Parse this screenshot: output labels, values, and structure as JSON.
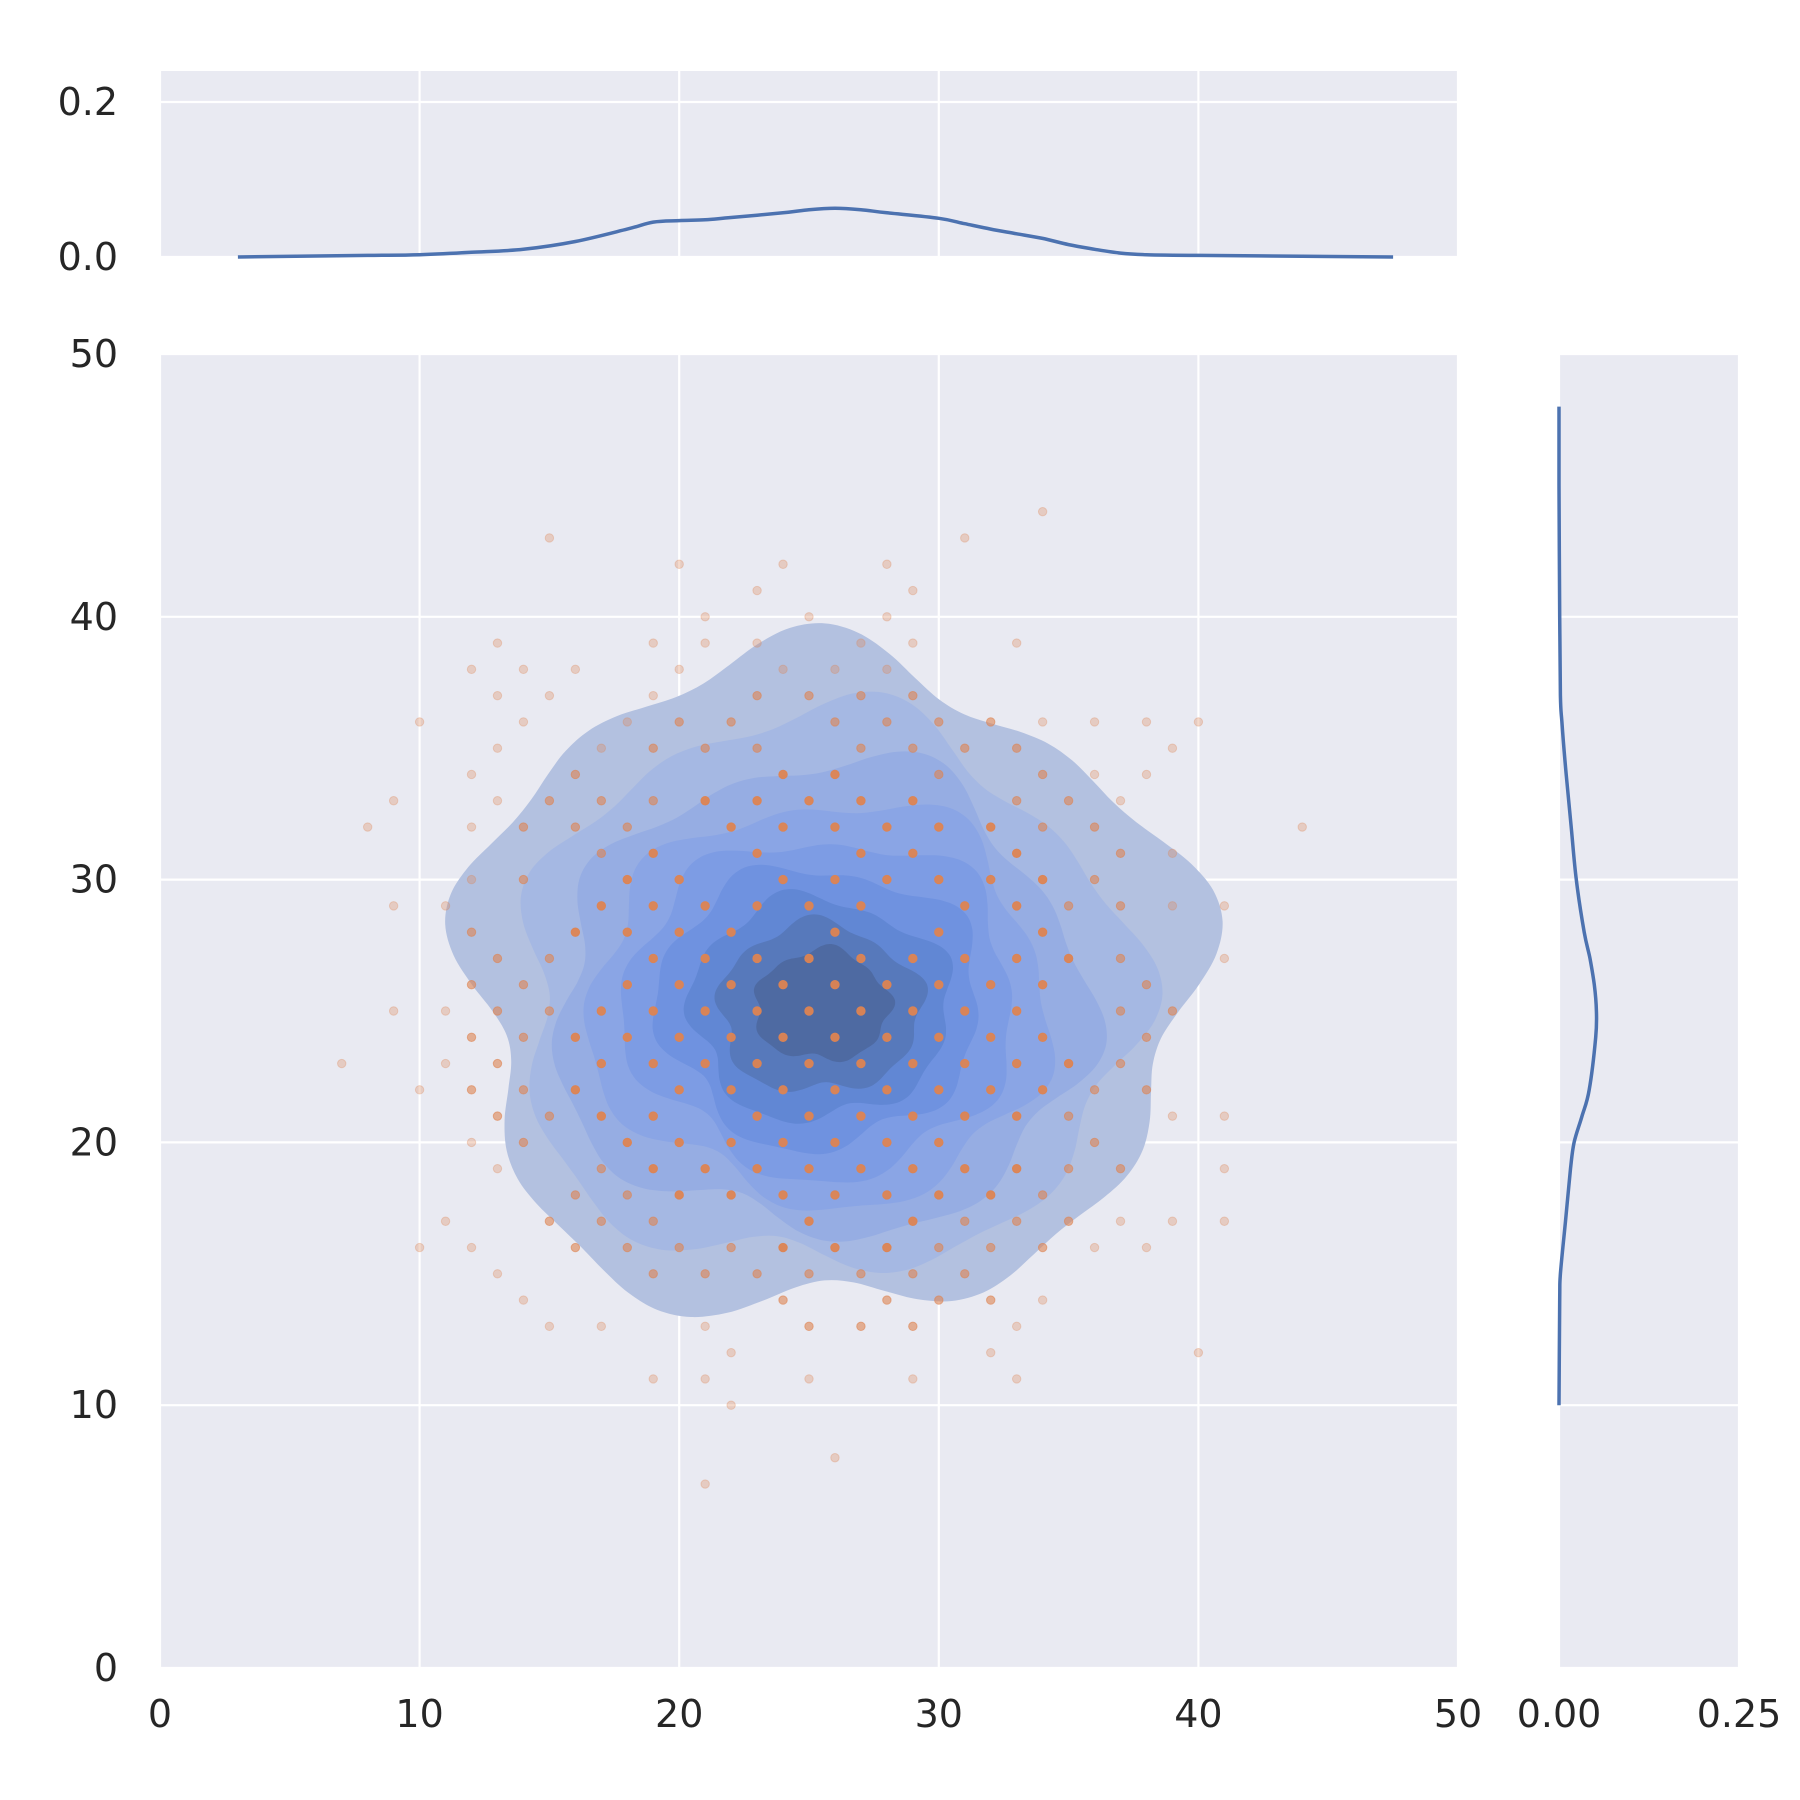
{
  "chart_data": {
    "type": "scatter",
    "style": "seaborn jointplot: bivariate KDE (filled contours) with scatter overlay and marginal KDE curves",
    "colors": {
      "panel_background": "#e9eaf2",
      "grid": "#ffffff",
      "kde_line": "#4c72b0",
      "scatter": "#dd8452",
      "contour_levels": [
        "#b3c1e0",
        "#a5b8e3",
        "#96ade3",
        "#8aa5e5",
        "#7d9ce4",
        "#6f92e0",
        "#6187d4",
        "#5779bb",
        "#4e6aa2",
        "#465a86"
      ]
    },
    "axes": {
      "joint": {
        "xlim": [
          0,
          50
        ],
        "ylim": [
          0,
          50
        ],
        "xticks": [
          0,
          10,
          20,
          30,
          40,
          50
        ],
        "yticks": [
          0,
          10,
          20,
          30,
          40,
          50
        ],
        "xtick_labels": [
          "0",
          "10",
          "20",
          "30",
          "40",
          "50"
        ],
        "ytick_labels": [
          "0",
          "10",
          "20",
          "30",
          "40",
          "50"
        ],
        "grid": true
      },
      "marginal_x": {
        "ylim": [
          0,
          0.24
        ],
        "yticks": [
          0.0,
          0.2
        ],
        "ytick_labels": [
          "0.0",
          "0.2"
        ],
        "grid": true
      },
      "marginal_y": {
        "xlim": [
          0,
          0.25
        ],
        "xticks": [
          0.0,
          0.25
        ],
        "xtick_labels": [
          "0.00",
          "0.25"
        ],
        "grid": true
      }
    },
    "marginal_x_kde": {
      "x": [
        3,
        8,
        10,
        12,
        14,
        16,
        18,
        19,
        20,
        21,
        22,
        24,
        25,
        26,
        27,
        28,
        30,
        31,
        32,
        33,
        34,
        35,
        36,
        37,
        38,
        40,
        44,
        47.5
      ],
      "density": [
        0,
        0.002,
        0.003,
        0.006,
        0.01,
        0.02,
        0.036,
        0.045,
        0.047,
        0.048,
        0.051,
        0.057,
        0.061,
        0.063,
        0.061,
        0.057,
        0.05,
        0.043,
        0.036,
        0.03,
        0.024,
        0.016,
        0.01,
        0.005,
        0.003,
        0.002,
        0.001,
        0
      ]
    },
    "marginal_y_kde": {
      "y": [
        0,
        10,
        14,
        15,
        17,
        19,
        20,
        21,
        22,
        24,
        25,
        26,
        27,
        28,
        30,
        32,
        34,
        36,
        37,
        40,
        45,
        48
      ],
      "density": [
        0,
        0.0,
        0.001,
        0.002,
        0.009,
        0.016,
        0.021,
        0.032,
        0.042,
        0.051,
        0.052,
        0.049,
        0.043,
        0.035,
        0.024,
        0.017,
        0.01,
        0.004,
        0.002,
        0.001,
        0,
        0
      ],
      "ylim": [
        5,
        48
      ]
    },
    "kde_contours": {
      "center": [
        25.5,
        25
      ],
      "levels": [
        {
          "radius_x": 14,
          "radius_y": 12.5,
          "center_x": 25.6,
          "center_y": 26.0
        },
        {
          "radius_x": 11.8,
          "radius_y": 10.5,
          "center_x": 25.6,
          "center_y": 25.6
        },
        {
          "radius_x": 10.2,
          "radius_y": 8.9,
          "center_x": 25.5,
          "center_y": 25.4
        },
        {
          "radius_x": 8.8,
          "radius_y": 7.6,
          "center_x": 25.5,
          "center_y": 25.3
        },
        {
          "radius_x": 7.5,
          "radius_y": 6.4,
          "center_x": 25.5,
          "center_y": 25.2
        },
        {
          "radius_x": 6.2,
          "radius_y": 5.3,
          "center_x": 25.4,
          "center_y": 25.2
        },
        {
          "radius_x": 5.0,
          "radius_y": 4.2,
          "center_x": 25.4,
          "center_y": 25.1
        },
        {
          "radius_x": 3.9,
          "radius_y": 3.2,
          "center_x": 25.4,
          "center_y": 25.1
        },
        {
          "radius_x": 2.6,
          "radius_y": 2.1,
          "center_x": 25.5,
          "center_y": 25.2
        }
      ]
    },
    "scatter_points": [
      [
        34,
        44
      ],
      [
        15,
        43
      ],
      [
        31,
        43
      ],
      [
        20,
        42
      ],
      [
        24,
        42
      ],
      [
        28,
        42
      ],
      [
        23,
        41
      ],
      [
        29,
        41
      ],
      [
        21,
        40
      ],
      [
        25,
        40
      ],
      [
        28,
        40
      ],
      [
        13,
        39
      ],
      [
        19,
        39
      ],
      [
        21,
        39
      ],
      [
        23,
        39
      ],
      [
        27,
        39
      ],
      [
        29,
        39
      ],
      [
        33,
        39
      ],
      [
        12,
        38
      ],
      [
        14,
        38
      ],
      [
        16,
        38
      ],
      [
        20,
        38
      ],
      [
        24,
        38
      ],
      [
        26,
        38
      ],
      [
        28,
        38
      ],
      [
        13,
        37
      ],
      [
        15,
        37
      ],
      [
        19,
        37
      ],
      [
        23,
        37
      ],
      [
        25,
        37
      ],
      [
        27,
        37
      ],
      [
        29,
        37
      ],
      [
        10,
        36
      ],
      [
        14,
        36
      ],
      [
        18,
        36
      ],
      [
        20,
        36
      ],
      [
        22,
        36
      ],
      [
        26,
        36
      ],
      [
        28,
        36
      ],
      [
        30,
        36
      ],
      [
        32,
        36
      ],
      [
        34,
        36
      ],
      [
        36,
        36
      ],
      [
        38,
        36
      ],
      [
        40,
        36
      ],
      [
        13,
        35
      ],
      [
        17,
        35
      ],
      [
        19,
        35
      ],
      [
        21,
        35
      ],
      [
        23,
        35
      ],
      [
        27,
        35
      ],
      [
        29,
        35
      ],
      [
        31,
        35
      ],
      [
        33,
        35
      ],
      [
        39,
        35
      ],
      [
        12,
        34
      ],
      [
        16,
        34
      ],
      [
        24,
        34
      ],
      [
        26,
        34
      ],
      [
        30,
        34
      ],
      [
        34,
        34
      ],
      [
        36,
        34
      ],
      [
        38,
        34
      ],
      [
        9,
        33
      ],
      [
        13,
        33
      ],
      [
        15,
        33
      ],
      [
        17,
        33
      ],
      [
        19,
        33
      ],
      [
        21,
        33
      ],
      [
        23,
        33
      ],
      [
        25,
        33
      ],
      [
        27,
        33
      ],
      [
        29,
        33
      ],
      [
        33,
        33
      ],
      [
        35,
        33
      ],
      [
        37,
        33
      ],
      [
        8,
        32
      ],
      [
        12,
        32
      ],
      [
        14,
        32
      ],
      [
        16,
        32
      ],
      [
        18,
        32
      ],
      [
        22,
        32
      ],
      [
        24,
        32
      ],
      [
        26,
        32
      ],
      [
        28,
        32
      ],
      [
        30,
        32
      ],
      [
        32,
        32
      ],
      [
        34,
        32
      ],
      [
        36,
        32
      ],
      [
        44,
        32
      ],
      [
        17,
        31
      ],
      [
        19,
        31
      ],
      [
        23,
        31
      ],
      [
        27,
        31
      ],
      [
        29,
        31
      ],
      [
        33,
        31
      ],
      [
        37,
        31
      ],
      [
        39,
        31
      ],
      [
        12,
        30
      ],
      [
        14,
        30
      ],
      [
        18,
        30
      ],
      [
        20,
        30
      ],
      [
        24,
        30
      ],
      [
        26,
        30
      ],
      [
        28,
        30
      ],
      [
        30,
        30
      ],
      [
        32,
        30
      ],
      [
        34,
        30
      ],
      [
        36,
        30
      ],
      [
        9,
        29
      ],
      [
        11,
        29
      ],
      [
        17,
        29
      ],
      [
        19,
        29
      ],
      [
        21,
        29
      ],
      [
        23,
        29
      ],
      [
        25,
        29
      ],
      [
        27,
        29
      ],
      [
        31,
        29
      ],
      [
        33,
        29
      ],
      [
        35,
        29
      ],
      [
        37,
        29
      ],
      [
        39,
        29
      ],
      [
        41,
        29
      ],
      [
        12,
        28
      ],
      [
        16,
        28
      ],
      [
        18,
        28
      ],
      [
        20,
        28
      ],
      [
        22,
        28
      ],
      [
        26,
        28
      ],
      [
        30,
        28
      ],
      [
        34,
        28
      ],
      [
        13,
        27
      ],
      [
        15,
        27
      ],
      [
        19,
        27
      ],
      [
        21,
        27
      ],
      [
        23,
        27
      ],
      [
        25,
        27
      ],
      [
        27,
        27
      ],
      [
        29,
        27
      ],
      [
        31,
        27
      ],
      [
        33,
        27
      ],
      [
        35,
        27
      ],
      [
        37,
        27
      ],
      [
        41,
        27
      ],
      [
        12,
        26
      ],
      [
        14,
        26
      ],
      [
        18,
        26
      ],
      [
        20,
        26
      ],
      [
        22,
        26
      ],
      [
        24,
        26
      ],
      [
        26,
        26
      ],
      [
        28,
        26
      ],
      [
        30,
        26
      ],
      [
        32,
        26
      ],
      [
        34,
        26
      ],
      [
        38,
        26
      ],
      [
        9,
        25
      ],
      [
        11,
        25
      ],
      [
        13,
        25
      ],
      [
        15,
        25
      ],
      [
        17,
        25
      ],
      [
        19,
        25
      ],
      [
        21,
        25
      ],
      [
        23,
        25
      ],
      [
        25,
        25
      ],
      [
        27,
        25
      ],
      [
        29,
        25
      ],
      [
        31,
        25
      ],
      [
        33,
        25
      ],
      [
        37,
        25
      ],
      [
        39,
        25
      ],
      [
        12,
        24
      ],
      [
        14,
        24
      ],
      [
        16,
        24
      ],
      [
        18,
        24
      ],
      [
        20,
        24
      ],
      [
        22,
        24
      ],
      [
        24,
        24
      ],
      [
        26,
        24
      ],
      [
        28,
        24
      ],
      [
        30,
        24
      ],
      [
        32,
        24
      ],
      [
        34,
        24
      ],
      [
        38,
        24
      ],
      [
        7,
        23
      ],
      [
        11,
        23
      ],
      [
        13,
        23
      ],
      [
        17,
        23
      ],
      [
        19,
        23
      ],
      [
        21,
        23
      ],
      [
        23,
        23
      ],
      [
        25,
        23
      ],
      [
        27,
        23
      ],
      [
        29,
        23
      ],
      [
        31,
        23
      ],
      [
        33,
        23
      ],
      [
        35,
        23
      ],
      [
        37,
        23
      ],
      [
        10,
        22
      ],
      [
        12,
        22
      ],
      [
        14,
        22
      ],
      [
        16,
        22
      ],
      [
        20,
        22
      ],
      [
        22,
        22
      ],
      [
        24,
        22
      ],
      [
        26,
        22
      ],
      [
        28,
        22
      ],
      [
        30,
        22
      ],
      [
        32,
        22
      ],
      [
        34,
        22
      ],
      [
        36,
        22
      ],
      [
        38,
        22
      ],
      [
        13,
        21
      ],
      [
        15,
        21
      ],
      [
        17,
        21
      ],
      [
        19,
        21
      ],
      [
        23,
        21
      ],
      [
        25,
        21
      ],
      [
        27,
        21
      ],
      [
        29,
        21
      ],
      [
        31,
        21
      ],
      [
        33,
        21
      ],
      [
        35,
        21
      ],
      [
        39,
        21
      ],
      [
        41,
        21
      ],
      [
        12,
        20
      ],
      [
        14,
        20
      ],
      [
        18,
        20
      ],
      [
        20,
        20
      ],
      [
        22,
        20
      ],
      [
        24,
        20
      ],
      [
        26,
        20
      ],
      [
        28,
        20
      ],
      [
        30,
        20
      ],
      [
        36,
        20
      ],
      [
        13,
        19
      ],
      [
        17,
        19
      ],
      [
        19,
        19
      ],
      [
        21,
        19
      ],
      [
        23,
        19
      ],
      [
        25,
        19
      ],
      [
        27,
        19
      ],
      [
        29,
        19
      ],
      [
        31,
        19
      ],
      [
        33,
        19
      ],
      [
        35,
        19
      ],
      [
        37,
        19
      ],
      [
        41,
        19
      ],
      [
        16,
        18
      ],
      [
        18,
        18
      ],
      [
        20,
        18
      ],
      [
        22,
        18
      ],
      [
        24,
        18
      ],
      [
        26,
        18
      ],
      [
        28,
        18
      ],
      [
        30,
        18
      ],
      [
        32,
        18
      ],
      [
        34,
        18
      ],
      [
        11,
        17
      ],
      [
        15,
        17
      ],
      [
        17,
        17
      ],
      [
        19,
        17
      ],
      [
        25,
        17
      ],
      [
        29,
        17
      ],
      [
        31,
        17
      ],
      [
        33,
        17
      ],
      [
        35,
        17
      ],
      [
        37,
        17
      ],
      [
        39,
        17
      ],
      [
        41,
        17
      ],
      [
        10,
        16
      ],
      [
        12,
        16
      ],
      [
        16,
        16
      ],
      [
        18,
        16
      ],
      [
        20,
        16
      ],
      [
        22,
        16
      ],
      [
        24,
        16
      ],
      [
        26,
        16
      ],
      [
        28,
        16
      ],
      [
        30,
        16
      ],
      [
        32,
        16
      ],
      [
        34,
        16
      ],
      [
        36,
        16
      ],
      [
        38,
        16
      ],
      [
        13,
        15
      ],
      [
        19,
        15
      ],
      [
        21,
        15
      ],
      [
        23,
        15
      ],
      [
        25,
        15
      ],
      [
        27,
        15
      ],
      [
        29,
        15
      ],
      [
        31,
        15
      ],
      [
        14,
        14
      ],
      [
        24,
        14
      ],
      [
        28,
        14
      ],
      [
        30,
        14
      ],
      [
        32,
        14
      ],
      [
        34,
        14
      ],
      [
        15,
        13
      ],
      [
        17,
        13
      ],
      [
        21,
        13
      ],
      [
        25,
        13
      ],
      [
        27,
        13
      ],
      [
        29,
        13
      ],
      [
        33,
        13
      ],
      [
        22,
        12
      ],
      [
        32,
        12
      ],
      [
        40,
        12
      ],
      [
        19,
        11
      ],
      [
        21,
        11
      ],
      [
        25,
        11
      ],
      [
        29,
        11
      ],
      [
        33,
        11
      ],
      [
        22,
        10
      ],
      [
        26,
        8
      ],
      [
        21,
        7
      ]
    ]
  }
}
